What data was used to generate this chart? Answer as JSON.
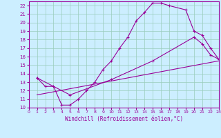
{
  "xlabel": "Windchill (Refroidissement éolien,°C)",
  "bg_color": "#cceeff",
  "line_color": "#990099",
  "grid_color": "#99ccbb",
  "xlim": [
    0,
    23
  ],
  "ylim": [
    10,
    22.5
  ],
  "xticks": [
    0,
    1,
    2,
    3,
    4,
    5,
    6,
    7,
    8,
    9,
    10,
    11,
    12,
    13,
    14,
    15,
    16,
    17,
    18,
    19,
    20,
    21,
    22,
    23
  ],
  "yticks": [
    10,
    11,
    12,
    13,
    14,
    15,
    16,
    17,
    18,
    19,
    20,
    21,
    22
  ],
  "curve1_x": [
    1,
    2,
    3,
    4,
    5,
    6,
    7,
    8,
    9,
    10,
    11,
    12,
    13,
    14,
    15,
    16,
    17,
    19,
    20,
    21,
    22,
    23
  ],
  "curve1_y": [
    13.5,
    12.5,
    12.5,
    10.3,
    10.3,
    11.0,
    12.0,
    13.0,
    14.5,
    15.5,
    17.0,
    18.3,
    20.2,
    21.2,
    22.3,
    22.3,
    22.0,
    21.5,
    19.0,
    18.5,
    17.0,
    15.7
  ],
  "curve2_x": [
    1,
    5,
    10,
    15,
    20,
    21,
    22,
    23
  ],
  "curve2_y": [
    13.5,
    11.5,
    13.3,
    15.5,
    18.3,
    17.5,
    16.2,
    15.7
  ],
  "curve3_x": [
    1,
    23
  ],
  "curve3_y": [
    11.5,
    15.5
  ]
}
